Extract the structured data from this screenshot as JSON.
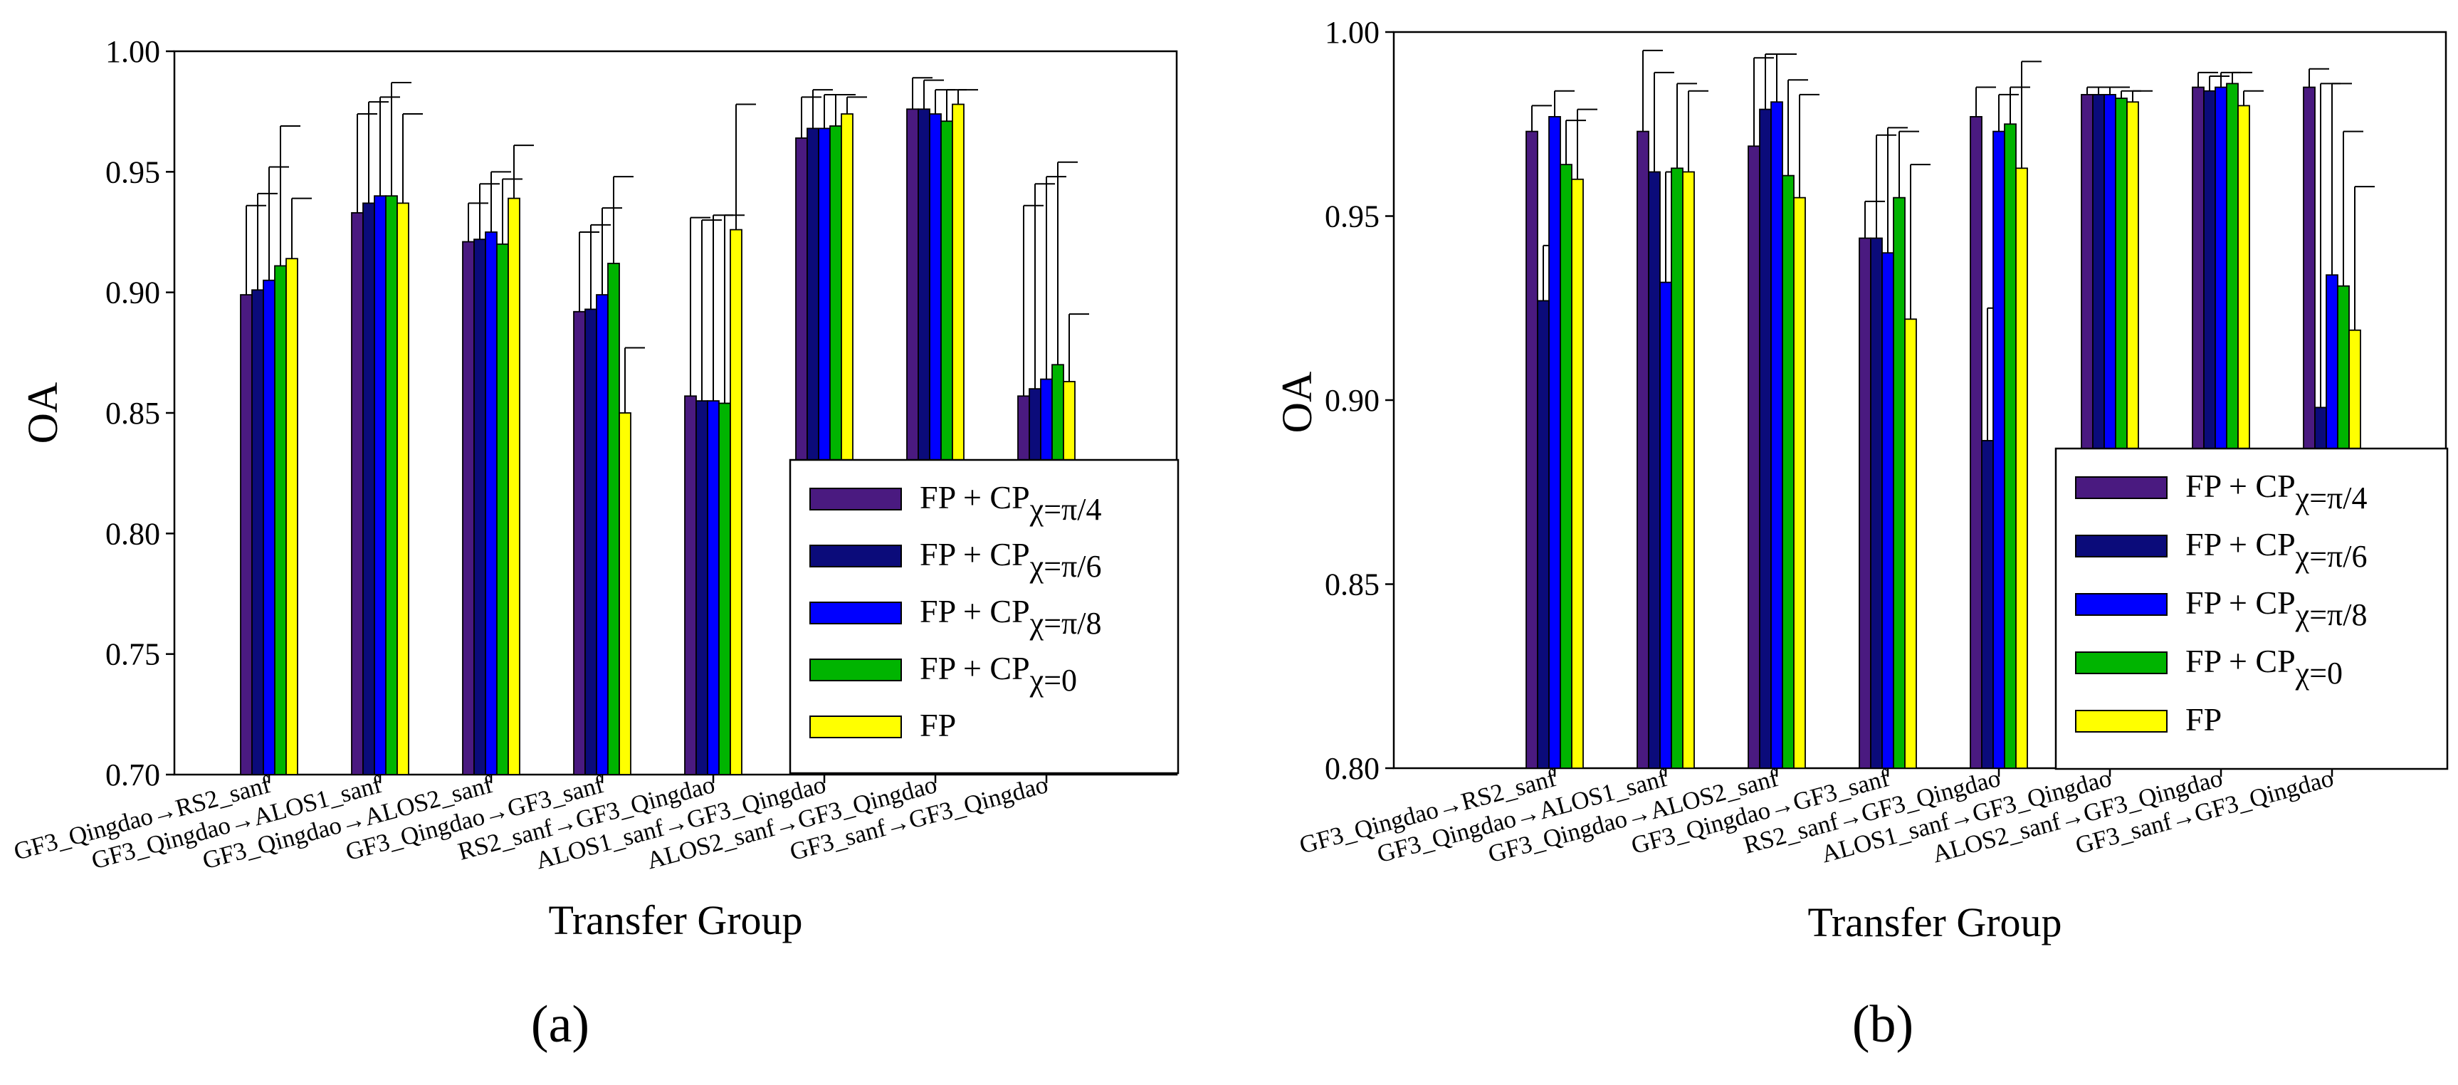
{
  "panel_labels": [
    "(a)",
    "(b)"
  ],
  "colors": [
    "#4a1a80",
    "#0b0b7a",
    "#0000ff",
    "#00b400",
    "#ffff00"
  ],
  "chart_data": [
    {
      "type": "bar",
      "panel": "(a)",
      "xlabel": "Transfer Group",
      "ylabel": "OA",
      "ylim": [
        0.7,
        1.0
      ],
      "yticks": [
        0.7,
        0.75,
        0.8,
        0.85,
        0.9,
        0.95,
        1.0
      ],
      "ytick_labels": [
        "0.70",
        "0.75",
        "0.80",
        "0.85",
        "0.90",
        "0.95",
        "1.00"
      ],
      "categories": [
        "GF3_Qingdao→RS2_sanf",
        "GF3_Qingdao→ALOS1_sanf",
        "GF3_Qingdao→ALOS2_sanf",
        "GF3_Qingdao→GF3_sanf",
        "RS2_sanf→GF3_Qingdao",
        "ALOS1_sanf→GF3_Qingdao",
        "ALOS2_sanf→GF3_Qingdao",
        "GF3_sanf→GF3_Qingdao"
      ],
      "series": [
        {
          "name": "FP + CP",
          "subscript": "χ=π/4",
          "values": [
            0.899,
            0.933,
            0.921,
            0.892,
            0.857,
            0.964,
            0.976,
            0.857
          ],
          "errors": [
            0.037,
            0.041,
            0.016,
            0.033,
            0.074,
            0.017,
            0.013,
            0.079
          ]
        },
        {
          "name": "FP + CP",
          "subscript": "χ=π/6",
          "values": [
            0.901,
            0.937,
            0.922,
            0.893,
            0.855,
            0.968,
            0.976,
            0.86
          ],
          "errors": [
            0.04,
            0.042,
            0.023,
            0.035,
            0.075,
            0.016,
            0.012,
            0.085
          ]
        },
        {
          "name": "FP + CP",
          "subscript": "χ=π/8",
          "values": [
            0.905,
            0.94,
            0.925,
            0.899,
            0.855,
            0.968,
            0.974,
            0.864
          ],
          "errors": [
            0.047,
            0.041,
            0.025,
            0.036,
            0.077,
            0.014,
            0.01,
            0.084
          ]
        },
        {
          "name": "FP + CP",
          "subscript": "χ=0",
          "values": [
            0.911,
            0.94,
            0.92,
            0.912,
            0.854,
            0.969,
            0.971,
            0.87
          ],
          "errors": [
            0.058,
            0.047,
            0.027,
            0.036,
            0.078,
            0.013,
            0.013,
            0.084
          ]
        },
        {
          "name": "FP",
          "subscript": "",
          "values": [
            0.914,
            0.937,
            0.939,
            0.85,
            0.926,
            0.974,
            0.978,
            0.863
          ],
          "errors": [
            0.025,
            0.037,
            0.022,
            0.027,
            0.052,
            0.007,
            0.006,
            0.028
          ]
        }
      ],
      "legend_position": "bottom-right"
    },
    {
      "type": "bar",
      "panel": "(b)",
      "xlabel": "Transfer Group",
      "ylabel": "OA",
      "ylim": [
        0.8,
        1.0
      ],
      "yticks": [
        0.8,
        0.85,
        0.9,
        0.95,
        1.0
      ],
      "ytick_labels": [
        "0.80",
        "0.85",
        "0.90",
        "0.95",
        "1.00"
      ],
      "categories": [
        "GF3_Qingdao→RS2_sanf",
        "GF3_Qingdao→ALOS1_sanf",
        "GF3_Qingdao→ALOS2_sanf",
        "GF3_Qingdao→GF3_sanf",
        "RS2_sanf→GF3_Qingdao",
        "ALOS1_sanf→GF3_Qingdao",
        "ALOS2_sanf→GF3_Qingdao",
        "GF3_sanf→GF3_Qingdao"
      ],
      "series": [
        {
          "name": "FP + CP",
          "subscript": "χ=π/4",
          "values": [
            0.973,
            0.973,
            0.969,
            0.944,
            0.977,
            0.983,
            0.985,
            0.985
          ],
          "errors": [
            0.007,
            0.022,
            0.024,
            0.01,
            0.008,
            0.002,
            0.004,
            0.005
          ]
        },
        {
          "name": "FP + CP",
          "subscript": "χ=π/6",
          "values": [
            0.927,
            0.962,
            0.979,
            0.944,
            0.889,
            0.983,
            0.984,
            0.898
          ],
          "errors": [
            0.015,
            0.027,
            0.015,
            0.028,
            0.036,
            0.002,
            0.004,
            0.088
          ]
        },
        {
          "name": "FP + CP",
          "subscript": "χ=π/8",
          "values": [
            0.977,
            0.932,
            0.981,
            0.94,
            0.973,
            0.983,
            0.985,
            0.934
          ],
          "errors": [
            0.007,
            0.03,
            0.013,
            0.034,
            0.01,
            0.002,
            0.004,
            0.052
          ]
        },
        {
          "name": "FP + CP",
          "subscript": "χ=0",
          "values": [
            0.964,
            0.963,
            0.961,
            0.955,
            0.975,
            0.982,
            0.986,
            0.931
          ],
          "errors": [
            0.012,
            0.023,
            0.026,
            0.018,
            0.01,
            0.002,
            0.003,
            0.042
          ]
        },
        {
          "name": "FP",
          "subscript": "",
          "values": [
            0.96,
            0.962,
            0.955,
            0.922,
            0.963,
            0.981,
            0.98,
            0.919
          ],
          "errors": [
            0.019,
            0.022,
            0.028,
            0.042,
            0.029,
            0.003,
            0.004,
            0.039
          ]
        }
      ],
      "legend_position": "bottom-right"
    }
  ]
}
